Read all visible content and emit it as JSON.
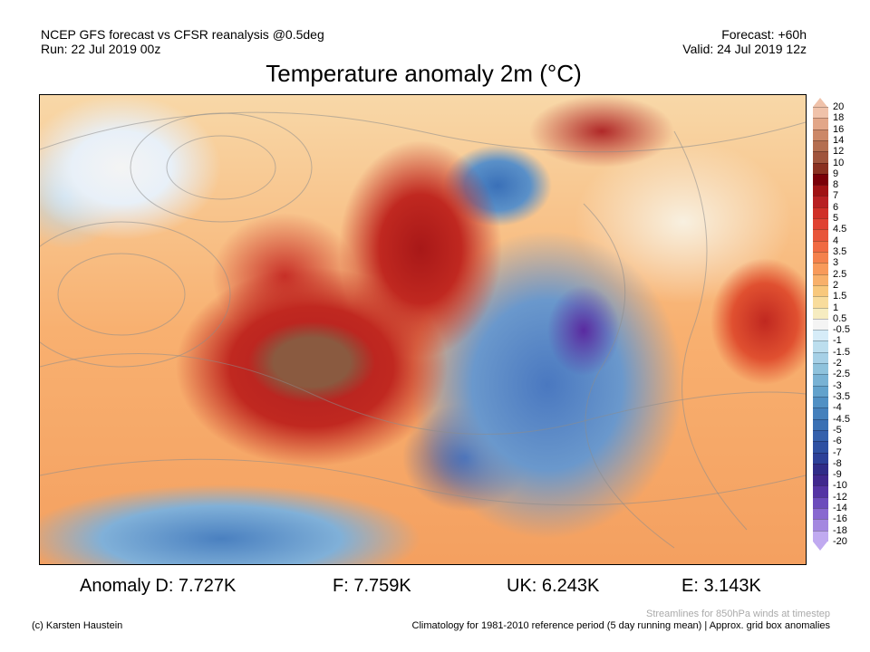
{
  "header": {
    "line1": "NCEP GFS forecast vs CFSR reanalysis @0.5deg",
    "line2": "Run: 22 Jul 2019 00z",
    "forecast": "Forecast: +60h",
    "valid": "Valid: 24 Jul 2019 12z"
  },
  "title": "Temperature anomaly 2m (°C)",
  "colorbar": {
    "labels": [
      "20",
      "18",
      "16",
      "14",
      "12",
      "10",
      "9",
      "8",
      "7",
      "6",
      "5",
      "4.5",
      "4",
      "3.5",
      "3",
      "2.5",
      "2",
      "1.5",
      "1",
      "0.5",
      "-0.5",
      "-1",
      "-1.5",
      "-2",
      "-2.5",
      "-3",
      "-3.5",
      "-4",
      "-4.5",
      "-5",
      "-6",
      "-7",
      "-8",
      "-9",
      "-10",
      "-12",
      "-14",
      "-16",
      "-18",
      "-20"
    ],
    "colors": [
      "#f0c2aa",
      "#e2a688",
      "#cc8868",
      "#b46e50",
      "#a0543c",
      "#8a3020",
      "#7a0008",
      "#a01214",
      "#b82022",
      "#d03028",
      "#e04232",
      "#e8553a",
      "#f06a42",
      "#f4814c",
      "#f89a5a",
      "#f8b06a",
      "#f8c87c",
      "#f8dc9c",
      "#f6ecc0",
      "#f4f4f4",
      "#d6ecf8",
      "#bcdeee",
      "#a6d0e6",
      "#8ec2dc",
      "#78b2d4",
      "#62a2cc",
      "#5090c4",
      "#4480bc",
      "#3a70b4",
      "#3460ac",
      "#2e50a2",
      "#2c4098",
      "#302c88",
      "#40288e",
      "#5434a4",
      "#6c4cbc",
      "#8868d0",
      "#a488e0",
      "#c0aaf0"
    ],
    "top_color": "#f8d0c0",
    "bottom_color": "#d0c8f4"
  },
  "stats": {
    "d": "Anomaly D: 7.727K",
    "f": "F: 7.759K",
    "uk": "UK: 6.243K",
    "e": "E: 3.143K"
  },
  "footer": {
    "credit": "(c) Karsten Haustein",
    "streamlines": "Streamlines for 850hPa winds at timestep",
    "climatology": "Climatology for 1981-2010 reference period (5 day running mean) | Approx. grid box anomalies"
  }
}
